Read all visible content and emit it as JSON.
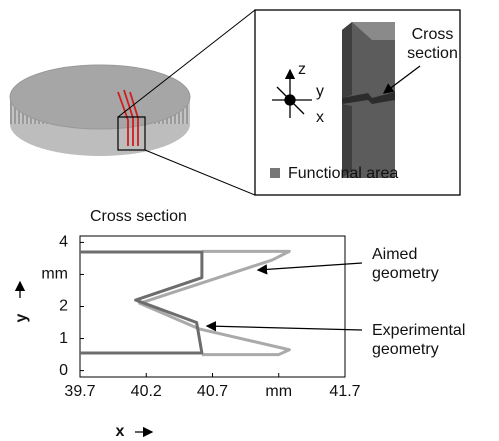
{
  "illustration": {
    "axes": [
      "z",
      "y",
      "x"
    ],
    "callout": "Cross section",
    "legend": "Functional area"
  },
  "chart_data": {
    "type": "line",
    "title": "Cross section",
    "x_label": "x",
    "y_label": "y",
    "xlim": [
      39.7,
      41.7
    ],
    "ylim": [
      -0.2,
      4.2
    ],
    "xticks": [
      39.7,
      40.2,
      40.7,
      {
        "value": 41.2,
        "label": "mm"
      },
      41.7
    ],
    "yticks": [
      0,
      1,
      2,
      {
        "value": 3,
        "label": "mm"
      },
      4
    ],
    "series": [
      {
        "name": "Aimed geometry",
        "color": "#aaaaaa",
        "x": [
          40.62,
          41.28,
          41.15,
          40.15,
          40.6,
          41.28,
          41.2,
          40.62
        ],
        "values": [
          3.72,
          3.72,
          3.45,
          2.1,
          1.3,
          0.65,
          0.5,
          0.5
        ]
      },
      {
        "name": "Experimental geometry",
        "color": "#6d6d6d",
        "x": [
          39.7,
          40.62,
          40.62,
          40.12,
          40.58,
          40.62,
          39.7
        ],
        "values": [
          3.7,
          3.7,
          2.9,
          2.2,
          1.5,
          0.55,
          0.55
        ]
      }
    ]
  }
}
